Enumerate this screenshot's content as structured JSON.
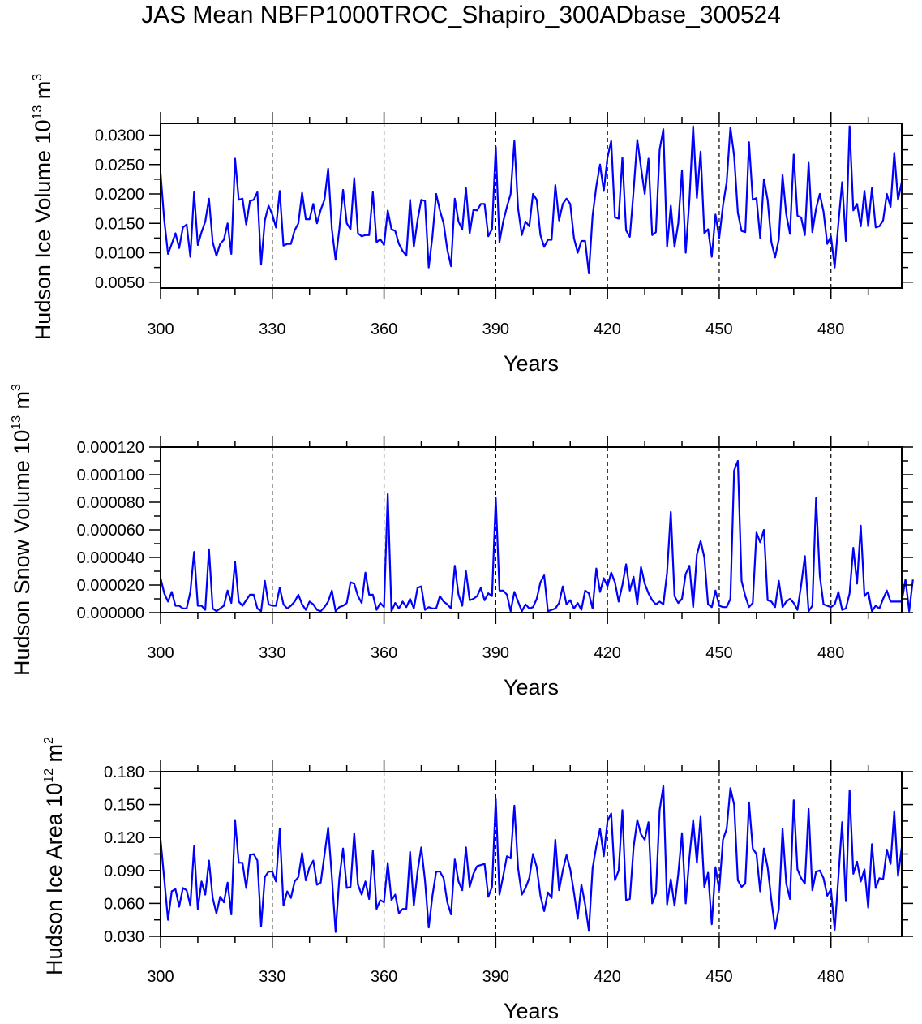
{
  "title": "JAS Mean NBFP1000TROC_Shapiro_300ADbase_300524",
  "chart_data": [
    {
      "type": "line",
      "title": "",
      "ylabel": {
        "main": "Hudson Ice Volume 10",
        "exp": "13",
        "unit": " m",
        "unit_exp": "3"
      },
      "xlabel": "Years",
      "xlim": [
        300,
        499
      ],
      "ylim": [
        0.004,
        0.032
      ],
      "xticks": [
        300,
        330,
        360,
        390,
        420,
        450,
        480
      ],
      "xtick_labels": [
        "300",
        "330",
        "360",
        "390",
        "420",
        "450",
        "480"
      ],
      "yticks": [
        0.005,
        0.01,
        0.015,
        0.02,
        0.025,
        0.03
      ],
      "ytick_labels": [
        "0.0050",
        "0.0100",
        "0.0150",
        "0.0200",
        "0.0250",
        "0.0300"
      ],
      "vlines": [
        330,
        360,
        390,
        420,
        450,
        480
      ],
      "color": "#0000ff",
      "x_start": 300,
      "values": [
        0.0235,
        0.0155,
        0.0098,
        0.0115,
        0.0133,
        0.0108,
        0.0143,
        0.0148,
        0.0093,
        0.0203,
        0.0113,
        0.0135,
        0.0153,
        0.0192,
        0.0118,
        0.0095,
        0.0115,
        0.0122,
        0.015,
        0.0098,
        0.026,
        0.019,
        0.0192,
        0.0148,
        0.0188,
        0.019,
        0.0203,
        0.008,
        0.0155,
        0.018,
        0.0165,
        0.0143,
        0.0205,
        0.0112,
        0.0115,
        0.0115,
        0.0138,
        0.015,
        0.0202,
        0.0157,
        0.0157,
        0.0183,
        0.015,
        0.0173,
        0.019,
        0.0243,
        0.014,
        0.0088,
        0.014,
        0.0207,
        0.015,
        0.014,
        0.0227,
        0.0133,
        0.0128,
        0.013,
        0.013,
        0.0203,
        0.0118,
        0.0123,
        0.0113,
        0.0172,
        0.014,
        0.0137,
        0.0115,
        0.0103,
        0.0095,
        0.019,
        0.011,
        0.0155,
        0.019,
        0.0188,
        0.0075,
        0.0128,
        0.02,
        0.0172,
        0.015,
        0.0105,
        0.0077,
        0.0192,
        0.0153,
        0.014,
        0.021,
        0.0133,
        0.0173,
        0.0172,
        0.0183,
        0.0183,
        0.0128,
        0.014,
        0.028,
        0.0118,
        0.0153,
        0.0178,
        0.02,
        0.029,
        0.0175,
        0.013,
        0.0153,
        0.0145,
        0.02,
        0.019,
        0.013,
        0.011,
        0.0122,
        0.0122,
        0.0215,
        0.0155,
        0.0183,
        0.0192,
        0.0183,
        0.0125,
        0.01,
        0.012,
        0.012,
        0.0065,
        0.0163,
        0.0213,
        0.025,
        0.0205,
        0.0262,
        0.029,
        0.016,
        0.0158,
        0.0262,
        0.0138,
        0.0127,
        0.0205,
        0.0292,
        0.0245,
        0.02,
        0.026,
        0.013,
        0.0135,
        0.0275,
        0.031,
        0.011,
        0.018,
        0.011,
        0.015,
        0.024,
        0.01,
        0.019,
        0.0315,
        0.0193,
        0.0272,
        0.0133,
        0.014,
        0.0093,
        0.0165,
        0.0125,
        0.018,
        0.022,
        0.0313,
        0.0265,
        0.0168,
        0.0137,
        0.0135,
        0.0288,
        0.019,
        0.0193,
        0.0125,
        0.0225,
        0.019,
        0.0118,
        0.0092,
        0.0123,
        0.0232,
        0.0165,
        0.0132,
        0.0267,
        0.0163,
        0.016,
        0.013,
        0.0253,
        0.0135,
        0.0175,
        0.02,
        0.017,
        0.0115,
        0.0128,
        0.0075,
        0.015,
        0.022,
        0.012,
        0.0315,
        0.0172,
        0.0183,
        0.0145,
        0.0205,
        0.0145,
        0.021,
        0.0143,
        0.0145,
        0.0155,
        0.02,
        0.0178,
        0.027,
        0.019,
        0.022
      ]
    },
    {
      "type": "line",
      "title": "",
      "ylabel": {
        "main": "Hudson Snow Volume 10",
        "exp": "13",
        "unit": " m",
        "unit_exp": "3"
      },
      "xlabel": "Years",
      "xlim": [
        300,
        499
      ],
      "ylim": [
        0,
        0.00012
      ],
      "xticks": [
        300,
        330,
        360,
        390,
        420,
        450,
        480
      ],
      "xtick_labels": [
        "300",
        "330",
        "360",
        "390",
        "420",
        "450",
        "480"
      ],
      "yticks": [
        0,
        2e-05,
        4e-05,
        6e-05,
        8e-05,
        0.0001,
        0.00012
      ],
      "ytick_labels": [
        "0.000000",
        "0.000020",
        "0.000040",
        "0.000060",
        "0.000080",
        "0.000100",
        "0.000120"
      ],
      "vlines": [
        330,
        360,
        390,
        420,
        450,
        480
      ],
      "color": "#0000ff",
      "x_start": 300,
      "values": [
        2.5e-05,
        1.4e-05,
        8e-06,
        1.5e-05,
        5e-06,
        5e-06,
        3e-06,
        3e-06,
        1.5e-05,
        4.4e-05,
        5e-06,
        5e-06,
        2e-06,
        4.6e-05,
        3e-06,
        1e-06,
        3e-06,
        5e-06,
        1.6e-05,
        7e-06,
        3.7e-05,
        8e-06,
        5e-06,
        9e-06,
        1.3e-05,
        1.3e-05,
        3e-06,
        1e-06,
        2.3e-05,
        6e-06,
        5e-06,
        5e-06,
        1.8e-05,
        6e-06,
        3e-06,
        5e-06,
        8e-06,
        1.3e-05,
        6e-06,
        2e-06,
        8e-06,
        6e-06,
        2e-06,
        1e-06,
        4e-06,
        8e-06,
        1.6e-05,
        1e-06,
        4e-06,
        5e-06,
        7e-06,
        2.2e-05,
        2.1e-05,
        1.2e-05,
        7e-06,
        2.9e-05,
        1.3e-05,
        1.3e-05,
        2e-06,
        7e-06,
        4e-06,
        8.6e-05,
        1e-06,
        7e-06,
        3e-06,
        8e-06,
        4e-06,
        1e-05,
        3e-06,
        1.8e-05,
        1.9e-05,
        2e-06,
        4e-06,
        3e-06,
        3e-06,
        1.2e-05,
        8e-06,
        6e-06,
        3e-06,
        3.4e-05,
        1.3e-05,
        5e-06,
        3e-05,
        9e-06,
        1e-05,
        1.2e-05,
        1.8e-05,
        9e-06,
        1.4e-05,
        1.2e-05,
        8.3e-05,
        1.6e-05,
        1.6e-05,
        1.3e-05,
        1e-06,
        1.5e-05,
        8e-06,
        1e-06,
        6e-06,
        3e-06,
        4e-06,
        1e-05,
        2.2e-05,
        2.7e-05,
        1e-06,
        2e-06,
        3e-06,
        7e-06,
        1.9e-05,
        6e-06,
        9e-06,
        3e-06,
        7e-06,
        2e-06,
        1.6e-05,
        1.4e-05,
        3e-06,
        3.2e-05,
        1.5e-05,
        2.5e-05,
        1.9e-05,
        2.9e-05,
        2.2e-05,
        8e-06,
        2e-05,
        3.5e-05,
        1.6e-05,
        2.6e-05,
        6e-06,
        3.3e-05,
        2.1e-05,
        1.4e-05,
        9e-06,
        6e-06,
        8e-06,
        6e-06,
        2.9e-05,
        7.3e-05,
        1.2e-05,
        7e-06,
        1e-05,
        2.8e-05,
        3.4e-05,
        4e-06,
        4.2e-05,
        5.2e-05,
        4e-05,
        6e-06,
        4e-06,
        1.6e-05,
        5e-06,
        4e-06,
        4e-06,
        1e-05,
        0.000103,
        0.00011,
        2.3e-05,
        1.2e-05,
        4e-06,
        7e-06,
        5.8e-05,
        5.1e-05,
        6e-05,
        9e-06,
        8e-06,
        4e-06,
        2.3e-05,
        4e-06,
        8e-06,
        1e-05,
        7e-06,
        2e-06,
        2e-05,
        4.1e-05,
        1e-06,
        5e-06,
        8.3e-05,
        2.7e-05,
        6e-06,
        5e-06,
        4e-06,
        6e-06,
        1.5e-05,
        2e-06,
        3e-06,
        1.4e-05,
        4.7e-05,
        2.1e-05,
        6.3e-05,
        1.2e-05,
        1.5e-05,
        1e-06,
        5e-06,
        3e-06,
        1e-05,
        1.6e-05,
        8e-06,
        8e-06,
        8e-06,
        8e-06,
        2.4e-05,
        1e-06,
        2.4e-05
      ]
    },
    {
      "type": "line",
      "title": "",
      "ylabel": {
        "main": "Hudson Ice Area 10",
        "exp": "12",
        "unit": " m",
        "unit_exp": "2"
      },
      "xlabel": "Years",
      "xlim": [
        300,
        499
      ],
      "ylim": [
        0.03,
        0.18
      ],
      "xticks": [
        300,
        330,
        360,
        390,
        420,
        450,
        480
      ],
      "xtick_labels": [
        "300",
        "330",
        "360",
        "390",
        "420",
        "450",
        "480"
      ],
      "yticks": [
        0.03,
        0.06,
        0.09,
        0.12,
        0.15,
        0.18
      ],
      "ytick_labels": [
        "0.030",
        "0.060",
        "0.090",
        "0.120",
        "0.150",
        "0.180"
      ],
      "vlines": [
        330,
        360,
        390,
        420,
        450,
        480
      ],
      "color": "#0000ff",
      "x_start": 300,
      "values": [
        0.118,
        0.082,
        0.045,
        0.071,
        0.073,
        0.057,
        0.074,
        0.072,
        0.058,
        0.112,
        0.055,
        0.08,
        0.068,
        0.099,
        0.065,
        0.051,
        0.066,
        0.061,
        0.079,
        0.05,
        0.136,
        0.097,
        0.097,
        0.074,
        0.104,
        0.105,
        0.099,
        0.039,
        0.084,
        0.089,
        0.089,
        0.08,
        0.128,
        0.058,
        0.071,
        0.065,
        0.08,
        0.084,
        0.106,
        0.081,
        0.093,
        0.099,
        0.077,
        0.079,
        0.104,
        0.129,
        0.084,
        0.034,
        0.083,
        0.11,
        0.074,
        0.075,
        0.124,
        0.077,
        0.068,
        0.08,
        0.064,
        0.108,
        0.055,
        0.063,
        0.061,
        0.097,
        0.063,
        0.068,
        0.051,
        0.055,
        0.055,
        0.107,
        0.058,
        0.089,
        0.111,
        0.081,
        0.038,
        0.067,
        0.089,
        0.089,
        0.083,
        0.061,
        0.05,
        0.1,
        0.08,
        0.072,
        0.111,
        0.075,
        0.087,
        0.094,
        0.095,
        0.096,
        0.066,
        0.075,
        0.155,
        0.068,
        0.085,
        0.103,
        0.101,
        0.149,
        0.092,
        0.068,
        0.074,
        0.083,
        0.105,
        0.093,
        0.067,
        0.053,
        0.07,
        0.065,
        0.118,
        0.072,
        0.09,
        0.104,
        0.091,
        0.07,
        0.046,
        0.077,
        0.059,
        0.035,
        0.092,
        0.112,
        0.128,
        0.103,
        0.135,
        0.142,
        0.081,
        0.09,
        0.145,
        0.063,
        0.064,
        0.111,
        0.136,
        0.123,
        0.118,
        0.134,
        0.06,
        0.069,
        0.145,
        0.167,
        0.059,
        0.082,
        0.058,
        0.087,
        0.124,
        0.06,
        0.102,
        0.136,
        0.097,
        0.139,
        0.075,
        0.088,
        0.041,
        0.093,
        0.072,
        0.118,
        0.128,
        0.165,
        0.15,
        0.081,
        0.075,
        0.078,
        0.152,
        0.11,
        0.105,
        0.071,
        0.11,
        0.093,
        0.063,
        0.037,
        0.055,
        0.128,
        0.078,
        0.064,
        0.154,
        0.091,
        0.083,
        0.078,
        0.146,
        0.072,
        0.089,
        0.09,
        0.083,
        0.067,
        0.073,
        0.036,
        0.084,
        0.134,
        0.062,
        0.163,
        0.087,
        0.098,
        0.08,
        0.091,
        0.056,
        0.114,
        0.074,
        0.083,
        0.082,
        0.109,
        0.096,
        0.144,
        0.085,
        0.111
      ]
    }
  ]
}
